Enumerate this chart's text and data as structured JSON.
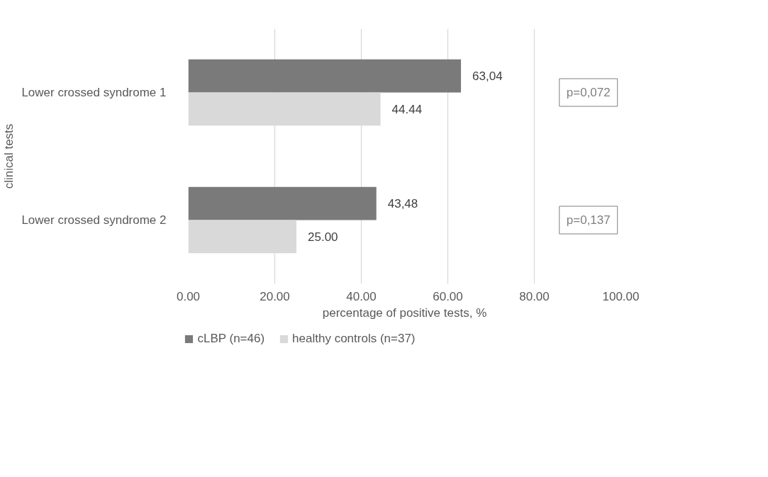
{
  "chart_data": {
    "type": "bar",
    "orientation": "horizontal",
    "xlabel": "percentage of positive tests, %",
    "ylabel": "clinical tests",
    "categories": [
      "Lower crossed syndrome 1",
      "Lower crossed syndrome 2"
    ],
    "series": [
      {
        "name": "cLBP (n=46)",
        "color": "#7a7a7a",
        "values": [
          63.04,
          43.48
        ],
        "value_labels": [
          "63,04",
          "43,48"
        ]
      },
      {
        "name": "healthy controls (n=37)",
        "color": "#d9d9d9",
        "values": [
          44.44,
          25.0
        ],
        "value_labels": [
          "44.44",
          "25.00"
        ]
      }
    ],
    "xlim": [
      0,
      100
    ],
    "xticks": [
      {
        "value": 0,
        "label": "0.00"
      },
      {
        "value": 20,
        "label": "20.00"
      },
      {
        "value": 40,
        "label": "40.00"
      },
      {
        "value": 60,
        "label": "60.00"
      },
      {
        "value": 80,
        "label": "80.00"
      },
      {
        "value": 100,
        "label": "100.00"
      }
    ],
    "annotations": [
      "p=0,072",
      "p=0,137"
    ],
    "grid": "x",
    "legend": "bottom"
  }
}
